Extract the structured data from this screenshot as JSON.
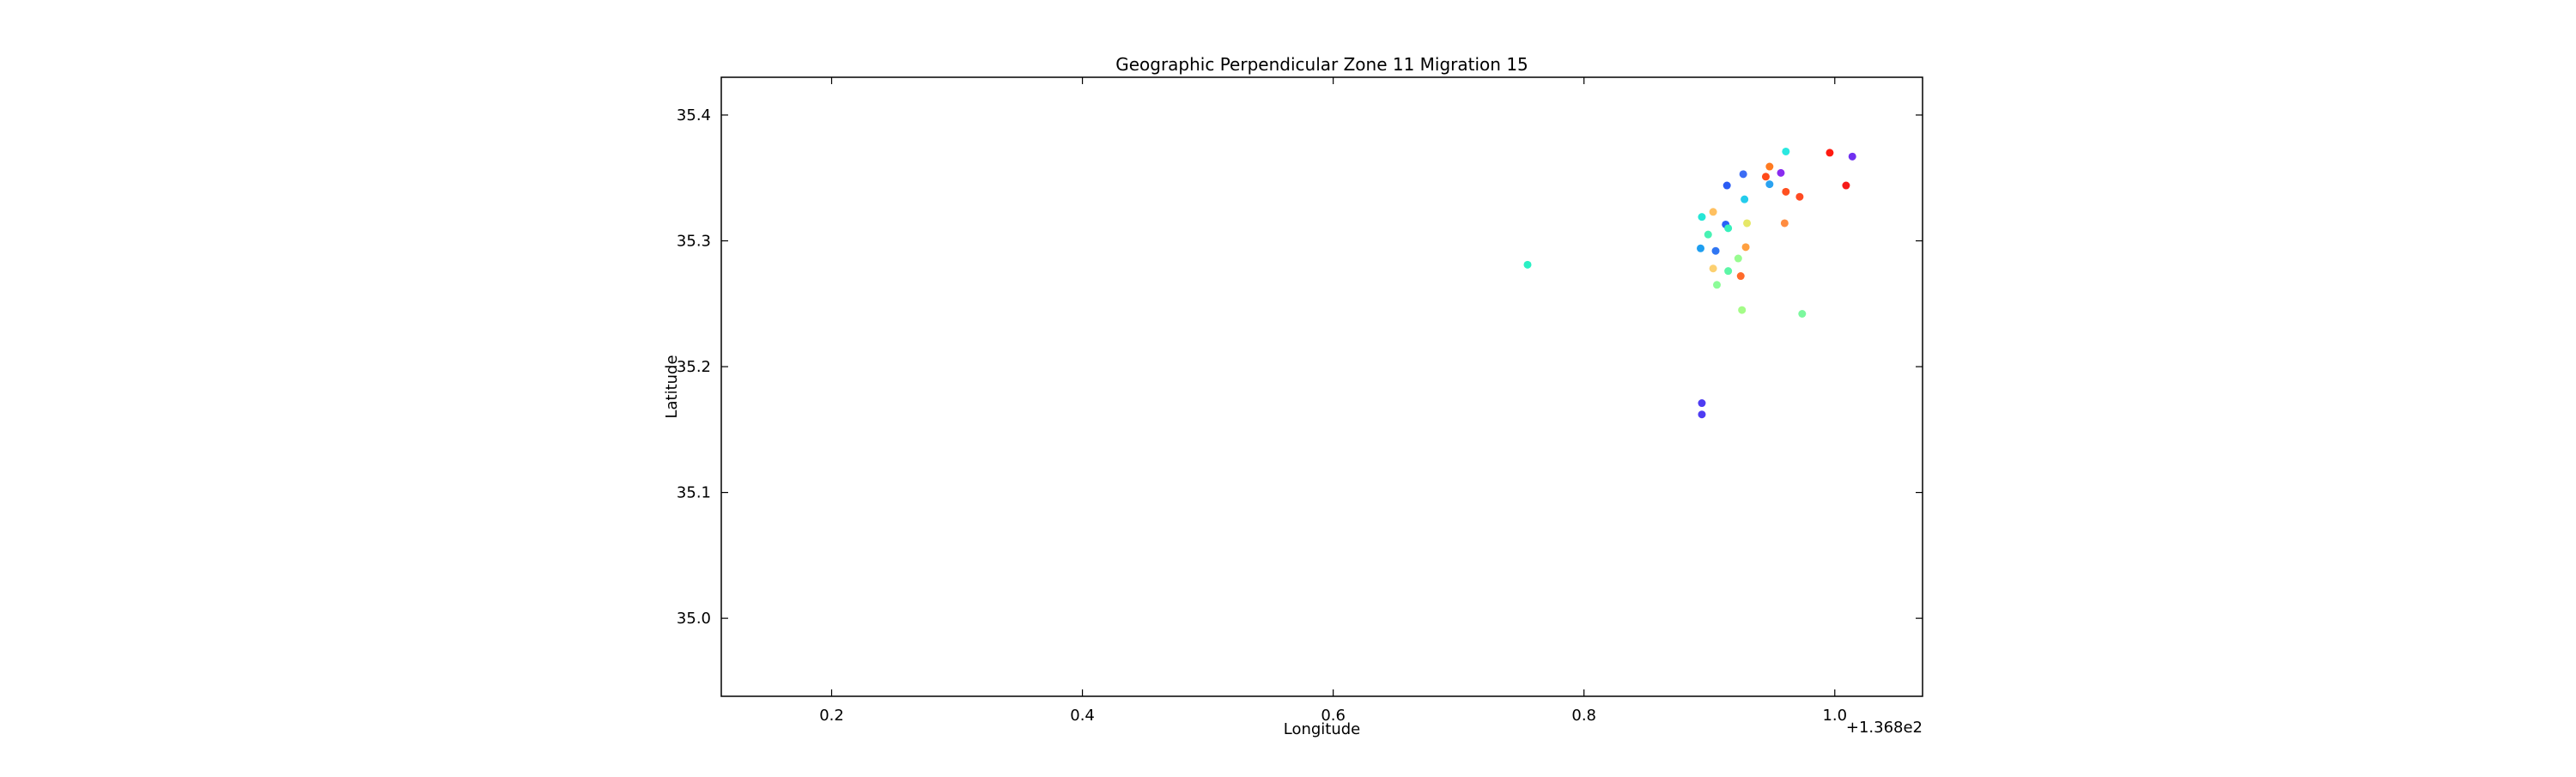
{
  "chart_data": {
    "type": "scatter",
    "title": "Geographic Perpendicular Zone 11 Migration 15",
    "xlabel": "Longitude",
    "ylabel": "Latitude",
    "x_offset_label": "+1.368e2",
    "xlim": [
      136.912,
      137.87
    ],
    "ylim": [
      34.938,
      35.43
    ],
    "xticks": [
      137.0,
      137.2,
      137.4,
      137.6,
      137.8
    ],
    "xtick_labels": [
      "0.2",
      "0.4",
      "0.6",
      "0.8",
      "1.0"
    ],
    "yticks": [
      35.0,
      35.1,
      35.2,
      35.3,
      35.4
    ],
    "ytick_labels": [
      "35.0",
      "35.1",
      "35.2",
      "35.3",
      "35.4"
    ],
    "grid": false,
    "points": [
      {
        "x": 137.555,
        "y": 35.281,
        "color": "#2af0c4"
      },
      {
        "x": 137.694,
        "y": 35.171,
        "color": "#4e3cf2"
      },
      {
        "x": 137.694,
        "y": 35.162,
        "color": "#4e3cf2"
      },
      {
        "x": 137.694,
        "y": 35.319,
        "color": "#26e6d6"
      },
      {
        "x": 137.693,
        "y": 35.294,
        "color": "#1e9ef0"
      },
      {
        "x": 137.699,
        "y": 35.305,
        "color": "#48f2b4"
      },
      {
        "x": 137.703,
        "y": 35.323,
        "color": "#ffc060"
      },
      {
        "x": 137.705,
        "y": 35.292,
        "color": "#3076f2"
      },
      {
        "x": 137.703,
        "y": 35.278,
        "color": "#fcd070"
      },
      {
        "x": 137.706,
        "y": 35.265,
        "color": "#8cfc98"
      },
      {
        "x": 137.713,
        "y": 35.313,
        "color": "#2a60f8"
      },
      {
        "x": 137.715,
        "y": 35.31,
        "color": "#36f0bc"
      },
      {
        "x": 137.714,
        "y": 35.344,
        "color": "#2a5cf4"
      },
      {
        "x": 137.715,
        "y": 35.276,
        "color": "#5cf6a6"
      },
      {
        "x": 137.723,
        "y": 35.286,
        "color": "#98fc90"
      },
      {
        "x": 137.725,
        "y": 35.272,
        "color": "#ff6a2a"
      },
      {
        "x": 137.726,
        "y": 35.245,
        "color": "#a4fc88"
      },
      {
        "x": 137.727,
        "y": 35.353,
        "color": "#3c6cf4"
      },
      {
        "x": 137.728,
        "y": 35.333,
        "color": "#24ccec"
      },
      {
        "x": 137.729,
        "y": 35.295,
        "color": "#ffa040"
      },
      {
        "x": 137.73,
        "y": 35.314,
        "color": "#e6e868"
      },
      {
        "x": 137.745,
        "y": 35.351,
        "color": "#ff4a1a"
      },
      {
        "x": 137.748,
        "y": 35.359,
        "color": "#ff7a20"
      },
      {
        "x": 137.748,
        "y": 35.345,
        "color": "#2aa2f0"
      },
      {
        "x": 137.757,
        "y": 35.354,
        "color": "#8a2cf0"
      },
      {
        "x": 137.76,
        "y": 35.314,
        "color": "#ff8c40"
      },
      {
        "x": 137.761,
        "y": 35.371,
        "color": "#2ae8e0"
      },
      {
        "x": 137.761,
        "y": 35.339,
        "color": "#ff5020"
      },
      {
        "x": 137.772,
        "y": 35.335,
        "color": "#ff4a22"
      },
      {
        "x": 137.774,
        "y": 35.242,
        "color": "#7cf89e"
      },
      {
        "x": 137.796,
        "y": 35.37,
        "color": "#ff1a10"
      },
      {
        "x": 137.809,
        "y": 35.344,
        "color": "#f61a18"
      },
      {
        "x": 137.814,
        "y": 35.367,
        "color": "#7030f0"
      }
    ]
  }
}
